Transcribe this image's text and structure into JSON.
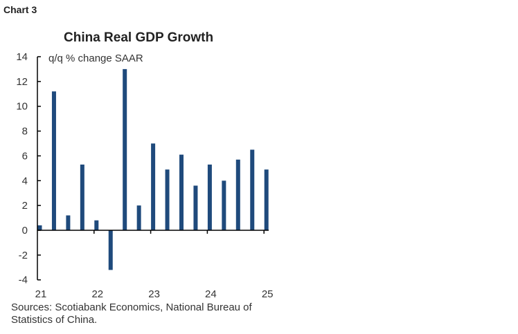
{
  "chart_label": "Chart 3",
  "chart_data": {
    "type": "bar",
    "title": "China Real GDP Growth",
    "ylabel": "q/q % change SAAR",
    "xlabel": "",
    "categories": [
      "21Q1",
      "21Q2",
      "21Q3",
      "21Q4",
      "22Q1",
      "22Q2",
      "22Q3",
      "22Q4",
      "23Q1",
      "23Q2",
      "23Q3",
      "23Q4",
      "24Q1",
      "24Q2",
      "24Q3",
      "24Q4",
      "25Q1"
    ],
    "values": [
      0.4,
      11.2,
      1.2,
      5.3,
      0.8,
      -3.2,
      13.0,
      2.0,
      7.0,
      4.9,
      6.1,
      3.6,
      5.3,
      4.0,
      5.7,
      6.5,
      4.9
    ],
    "ylim": [
      -4,
      14
    ],
    "yticks": [
      "-4",
      "-2",
      "0",
      "2",
      "4",
      "6",
      "8",
      "10",
      "12",
      "14"
    ],
    "xticks": [
      "21",
      "22",
      "23",
      "24",
      "25"
    ],
    "grid": false,
    "bar_color": "#1f4a7c"
  },
  "source": "Sources: Scotiabank Economics, National Bureau of Statistics of China."
}
